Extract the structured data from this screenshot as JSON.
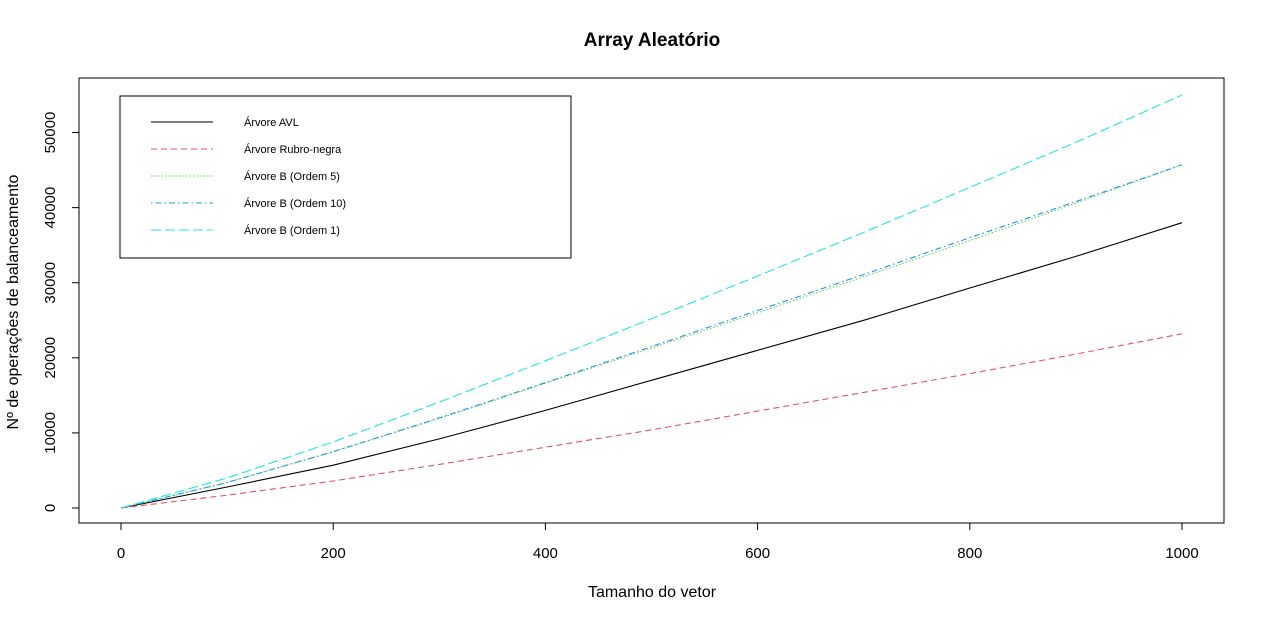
{
  "chart_data": {
    "type": "line",
    "title": "Array Aleatório",
    "xlabel": "Tamanho do vetor",
    "ylabel": "Nº de operações de balanceamento",
    "xlim": [
      0,
      1000
    ],
    "ylim": [
      0,
      55000
    ],
    "xticks": [
      0,
      200,
      400,
      600,
      800,
      1000
    ],
    "yticks": [
      0,
      10000,
      20000,
      30000,
      40000,
      50000
    ],
    "grid": false,
    "legend_position": "top-left",
    "x": [
      0,
      100,
      200,
      300,
      400,
      500,
      600,
      700,
      800,
      900,
      1000
    ],
    "series": [
      {
        "name": "Árvore AVL",
        "color": "#000000",
        "dash": "solid",
        "values": [
          0,
          2800,
          5700,
          9200,
          13000,
          17000,
          21000,
          25000,
          29300,
          33500,
          38000
        ]
      },
      {
        "name": "Árvore Rubro-negra",
        "color": "#DF536B",
        "dash": "dashed",
        "values": [
          0,
          1700,
          3600,
          5800,
          8100,
          10400,
          12900,
          15400,
          17900,
          20500,
          23200
        ]
      },
      {
        "name": "Árvore B (Ordem 5)",
        "color": "#61D04F",
        "dash": "dotted",
        "values": [
          0,
          3400,
          7500,
          11900,
          16600,
          21300,
          26000,
          30800,
          35600,
          40600,
          45700
        ]
      },
      {
        "name": "Árvore B (Ordem 10)",
        "color": "#2297E6",
        "dash": "dotdash",
        "values": [
          0,
          3400,
          7500,
          12000,
          16700,
          21500,
          26300,
          31100,
          36000,
          40800,
          45700
        ]
      },
      {
        "name": "Árvore B (Ordem 1)",
        "color": "#28E2E5",
        "dash": "longdash",
        "values": [
          0,
          4000,
          8800,
          14100,
          19600,
          25200,
          30900,
          36700,
          42700,
          48700,
          55000
        ]
      }
    ]
  }
}
